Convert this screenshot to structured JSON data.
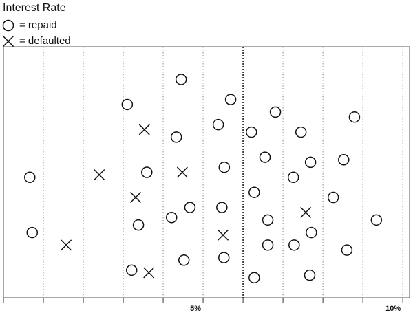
{
  "chart_data": {
    "type": "scatter",
    "title": "Interest Rate",
    "xlim": [
      0,
      10.17
    ],
    "ylim": [
      0,
      100
    ],
    "xticks": [
      {
        "value": 5,
        "label": "5%"
      },
      {
        "value": 10,
        "label": "10%"
      }
    ],
    "minor_xticks": [
      0,
      1,
      2,
      3,
      4,
      5,
      6,
      7,
      8,
      9,
      10
    ],
    "grid": true,
    "threshold": 6,
    "legend": "top-left",
    "series": [
      {
        "name": "= repaid",
        "marker": "circle",
        "color": "#111111",
        "x": [
          4.45,
          5.69,
          3.1,
          6.81,
          8.79,
          5.38,
          7.45,
          6.21,
          4.33,
          6.55,
          7.69,
          8.52,
          0.66,
          3.59,
          5.53,
          7.26,
          6.28,
          8.26,
          4.67,
          5.47,
          9.34,
          3.38,
          4.21,
          6.62,
          7.71,
          0.72,
          6.62,
          7.28,
          8.6,
          4.52,
          5.52,
          3.21,
          6.28,
          7.67
        ],
        "values": [
          87,
          79,
          77,
          74,
          72,
          69,
          66,
          66,
          64,
          56,
          54,
          55,
          48,
          50,
          52,
          48,
          42,
          40,
          36,
          36,
          31,
          29,
          32,
          31,
          26,
          26,
          21,
          21,
          19,
          15,
          16,
          11,
          8,
          9
        ]
      },
      {
        "name": "= defaulted",
        "marker": "cross",
        "color": "#111111",
        "x": [
          3.53,
          2.4,
          4.48,
          3.31,
          7.57,
          5.5,
          1.57,
          3.64
        ],
        "values": [
          67,
          49,
          50,
          40,
          34,
          25,
          21,
          10
        ]
      }
    ]
  }
}
